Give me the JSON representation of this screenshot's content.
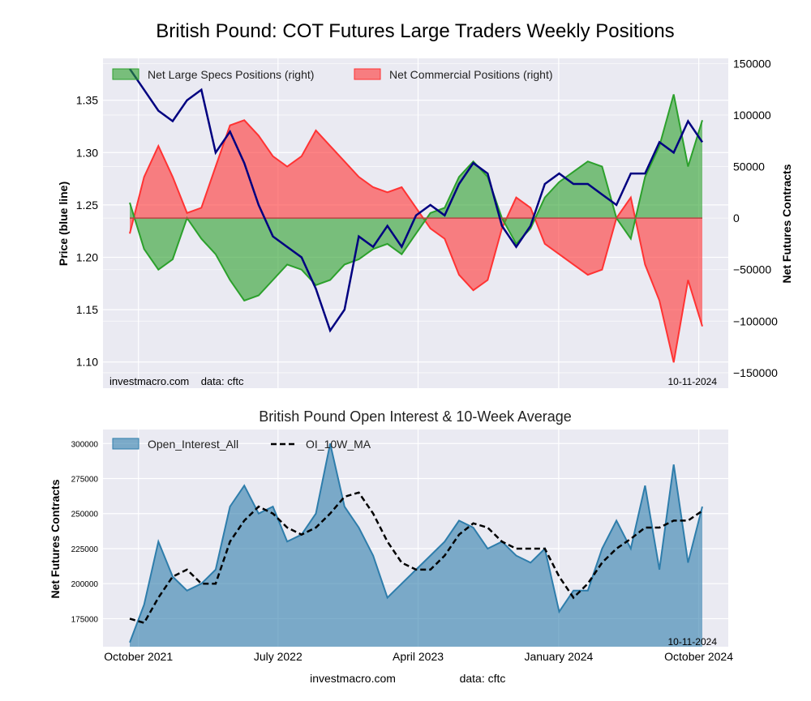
{
  "title": "British Pound: COT Futures Large Traders Weekly Positions",
  "date_label": "10-11-2024",
  "credit": {
    "site": "investmacro.com",
    "data": "data: cftc",
    "combined": "investmacro.com    data: cftc"
  },
  "x_ticks": [
    "October 2021",
    "July 2022",
    "April 2023",
    "January 2024",
    "October 2024"
  ],
  "colors": {
    "price": "#000080",
    "specs": "#2ca02c",
    "commercial": "#ff3333",
    "oi": "#2e7dab",
    "ma": "#000000",
    "panel_bg": "#eaeaf2"
  },
  "chart_data": [
    {
      "type": "line",
      "title": "British Pound: COT Futures Large Traders Weekly Positions",
      "ylabel": "Price (blue line)",
      "y2label": "Net Futures Contracts",
      "ylim": [
        1.075,
        1.39
      ],
      "y2lim": [
        -165000,
        155000
      ],
      "yticks": [
        "1.10",
        "1.15",
        "1.20",
        "1.25",
        "1.30",
        "1.35"
      ],
      "y2ticks": [
        "−150000",
        "−100000",
        "−50000",
        "0",
        "50000",
        "100000",
        "150000"
      ],
      "legend_position": "top-left",
      "grid": true,
      "x": [
        "2021-09-14",
        "2021-10-12",
        "2021-11-09",
        "2021-12-07",
        "2022-01-04",
        "2022-02-01",
        "2022-03-01",
        "2022-03-29",
        "2022-04-26",
        "2022-05-24",
        "2022-06-21",
        "2022-07-19",
        "2022-08-16",
        "2022-09-13",
        "2022-10-11",
        "2022-11-08",
        "2022-12-06",
        "2023-01-03",
        "2023-01-31",
        "2023-02-28",
        "2023-03-28",
        "2023-04-25",
        "2023-05-23",
        "2023-06-20",
        "2023-07-18",
        "2023-08-15",
        "2023-09-12",
        "2023-10-10",
        "2023-11-07",
        "2023-12-05",
        "2024-01-02",
        "2024-01-30",
        "2024-02-27",
        "2024-03-26",
        "2024-04-23",
        "2024-05-21",
        "2024-06-18",
        "2024-07-16",
        "2024-08-13",
        "2024-09-10",
        "2024-10-08"
      ],
      "series": [
        {
          "name": "Price",
          "axis": "left",
          "values": [
            1.38,
            1.36,
            1.34,
            1.33,
            1.35,
            1.36,
            1.3,
            1.32,
            1.29,
            1.25,
            1.22,
            1.21,
            1.2,
            1.17,
            1.13,
            1.15,
            1.22,
            1.21,
            1.23,
            1.21,
            1.24,
            1.25,
            1.24,
            1.27,
            1.29,
            1.28,
            1.23,
            1.21,
            1.23,
            1.27,
            1.28,
            1.27,
            1.27,
            1.26,
            1.25,
            1.28,
            1.28,
            1.31,
            1.3,
            1.33,
            1.31
          ]
        },
        {
          "name": "Net Large Specs Positions (right)",
          "axis": "right",
          "values": [
            15000,
            -30000,
            -50000,
            -40000,
            0,
            -20000,
            -35000,
            -60000,
            -80000,
            -75000,
            -60000,
            -45000,
            -50000,
            -65000,
            -60000,
            -45000,
            -40000,
            -30000,
            -25000,
            -35000,
            -15000,
            5000,
            10000,
            40000,
            55000,
            40000,
            0,
            -25000,
            -10000,
            20000,
            35000,
            45000,
            55000,
            50000,
            0,
            -20000,
            40000,
            70000,
            120000,
            50000,
            95000
          ]
        },
        {
          "name": "Net Commercial Positions (right)",
          "axis": "right",
          "values": [
            -15000,
            40000,
            70000,
            40000,
            5000,
            10000,
            50000,
            90000,
            95000,
            80000,
            60000,
            50000,
            60000,
            85000,
            70000,
            55000,
            40000,
            30000,
            25000,
            30000,
            10000,
            -10000,
            -20000,
            -55000,
            -70000,
            -60000,
            -10000,
            20000,
            10000,
            -25000,
            -35000,
            -45000,
            -55000,
            -50000,
            0,
            20000,
            -45000,
            -80000,
            -140000,
            -60000,
            -105000
          ]
        }
      ]
    },
    {
      "type": "area",
      "title": "British Pound Open Interest & 10-Week Average",
      "ylabel": "Net Futures Contracts",
      "ylim": [
        155000,
        310000
      ],
      "yticks": [
        "175000",
        "200000",
        "225000",
        "250000",
        "275000",
        "300000"
      ],
      "legend_position": "top-left",
      "grid": true,
      "x": [
        "2021-09-14",
        "2021-10-12",
        "2021-11-09",
        "2021-12-07",
        "2022-01-04",
        "2022-02-01",
        "2022-03-01",
        "2022-03-29",
        "2022-04-26",
        "2022-05-24",
        "2022-06-21",
        "2022-07-19",
        "2022-08-16",
        "2022-09-13",
        "2022-10-11",
        "2022-11-08",
        "2022-12-06",
        "2023-01-03",
        "2023-01-31",
        "2023-02-28",
        "2023-03-28",
        "2023-04-25",
        "2023-05-23",
        "2023-06-20",
        "2023-07-18",
        "2023-08-15",
        "2023-09-12",
        "2023-10-10",
        "2023-11-07",
        "2023-12-05",
        "2024-01-02",
        "2024-01-30",
        "2024-02-27",
        "2024-03-26",
        "2024-04-23",
        "2024-05-21",
        "2024-06-18",
        "2024-07-16",
        "2024-08-13",
        "2024-09-10",
        "2024-10-08"
      ],
      "series": [
        {
          "name": "Open_Interest_All",
          "values": [
            158000,
            185000,
            230000,
            205000,
            195000,
            200000,
            210000,
            255000,
            270000,
            250000,
            255000,
            230000,
            235000,
            250000,
            300000,
            255000,
            240000,
            220000,
            190000,
            200000,
            210000,
            220000,
            230000,
            245000,
            240000,
            225000,
            230000,
            220000,
            215000,
            225000,
            180000,
            195000,
            195000,
            225000,
            245000,
            225000,
            270000,
            210000,
            285000,
            215000,
            255000
          ]
        },
        {
          "name": "OI_10W_MA",
          "values": [
            175000,
            172000,
            190000,
            205000,
            210000,
            200000,
            200000,
            230000,
            245000,
            255000,
            250000,
            240000,
            235000,
            240000,
            250000,
            262000,
            265000,
            250000,
            230000,
            215000,
            210000,
            210000,
            220000,
            235000,
            243000,
            240000,
            230000,
            225000,
            225000,
            225000,
            205000,
            190000,
            200000,
            215000,
            225000,
            232000,
            240000,
            240000,
            245000,
            245000,
            252000
          ]
        }
      ]
    }
  ]
}
